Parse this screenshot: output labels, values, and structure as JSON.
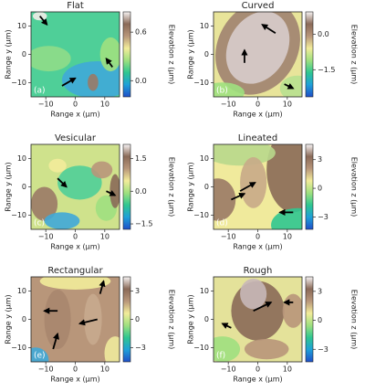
{
  "colormap": [
    "#1f4fc8",
    "#1fa0d8",
    "#2fc690",
    "#9fe07f",
    "#f2ec9a",
    "#b8967a",
    "#8a6a58",
    "#f7f3f3"
  ],
  "chart_data": [
    {
      "type": "heatmap",
      "title": "Flat",
      "panel_label": "(a)",
      "x_label": "Range x (μm)",
      "y_label": "Range y (μm)",
      "colorbar_label": "Elevation z (μm)",
      "xlim": [
        -15,
        15
      ],
      "ylim": [
        -15,
        15
      ],
      "xticks": [
        {
          "value": -10,
          "label": "−10"
        },
        0,
        10
      ],
      "yticks": [
        {
          "value": -10,
          "label": "−10"
        },
        0,
        10
      ],
      "clim": [
        -0.2,
        0.85
      ],
      "cticks": [
        {
          "value": 0,
          "label": "0.0"
        },
        0.6
      ]
    },
    {
      "type": "heatmap",
      "title": "Curved",
      "panel_label": "(b)",
      "x_label": "Range x (μm)",
      "y_label": "Range y (μm)",
      "colorbar_label": "Elevation z (μm)",
      "xlim": [
        -15,
        15
      ],
      "ylim": [
        -15,
        15
      ],
      "xticks": [
        {
          "value": -10,
          "label": "−10"
        },
        0,
        10
      ],
      "yticks": [
        {
          "value": -10,
          "label": "−10"
        },
        0,
        10
      ],
      "clim": [
        -2.65,
        0.95
      ],
      "cticks": [
        {
          "value": 0,
          "label": "0.0"
        },
        {
          "value": -1.5,
          "label": "−1.5"
        }
      ]
    },
    {
      "type": "heatmap",
      "title": "Vesicular",
      "panel_label": "(c)",
      "x_label": "Range x (μm)",
      "y_label": "Range y (μm)",
      "colorbar_label": "Elevation z (μm)",
      "xlim": [
        -15,
        15
      ],
      "ylim": [
        -15,
        15
      ],
      "xticks": [
        {
          "value": -10,
          "label": "−10"
        },
        0,
        10
      ],
      "yticks": [
        {
          "value": -10,
          "label": "−10"
        },
        0,
        10
      ],
      "clim": [
        -1.75,
        2.15
      ],
      "cticks": [
        1.5,
        {
          "value": 0,
          "label": "0.0"
        },
        {
          "value": -1.5,
          "label": "−1.5"
        }
      ]
    },
    {
      "type": "heatmap",
      "title": "Lineated",
      "panel_label": "(d)",
      "x_label": "Range x (μm)",
      "y_label": "Range y (μm)",
      "colorbar_label": "Elevation z (μm)",
      "xlim": [
        -15,
        15
      ],
      "ylim": [
        -15,
        15
      ],
      "xticks": [
        {
          "value": -10,
          "label": "−10"
        },
        0,
        10
      ],
      "yticks": [
        {
          "value": -10,
          "label": "−10"
        },
        0,
        10
      ],
      "clim": [
        -4.3,
        4.6
      ],
      "cticks": [
        3,
        0,
        {
          "value": -3,
          "label": "−3"
        }
      ]
    },
    {
      "type": "heatmap",
      "title": "Rectangular",
      "panel_label": "(e)",
      "x_label": "Range x (μm)",
      "y_label": "Range y (μm)",
      "colorbar_label": "Elevation z (μm)",
      "xlim": [
        -15,
        15
      ],
      "ylim": [
        -15,
        15
      ],
      "xticks": [
        {
          "value": -10,
          "label": "−10"
        },
        0,
        10
      ],
      "yticks": [
        {
          "value": -10,
          "label": "−10"
        },
        0,
        10
      ],
      "clim": [
        -4.5,
        4.5
      ],
      "cticks": [
        3,
        0,
        {
          "value": -3,
          "label": "−3"
        }
      ]
    },
    {
      "type": "heatmap",
      "title": "Rough",
      "panel_label": "(f)",
      "x_label": "Range x (μm)",
      "y_label": "Range y (μm)",
      "colorbar_label": "Elevation z (μm)",
      "xlim": [
        -15,
        15
      ],
      "ylim": [
        -15,
        15
      ],
      "xticks": [
        {
          "value": -10,
          "label": "−10"
        },
        0,
        10
      ],
      "yticks": [
        {
          "value": -10,
          "label": "−10"
        },
        0,
        10
      ],
      "clim": [
        -4.3,
        4.5
      ],
      "cticks": [
        3,
        0,
        {
          "value": -3,
          "label": "−3"
        }
      ]
    }
  ]
}
